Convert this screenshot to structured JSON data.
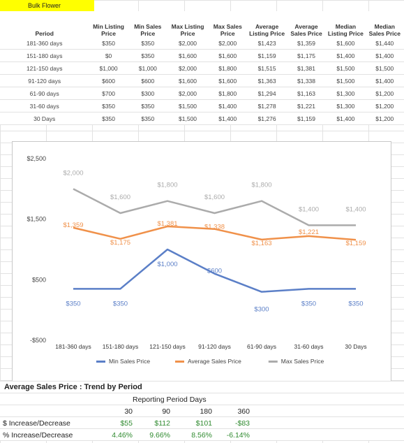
{
  "sheet_title": "Bulk Flower",
  "table": {
    "headers": [
      "Period",
      "Min Listing Price",
      "Min Sales Price",
      "Max Listing Price",
      "Max Sales Price",
      "Average Listing Price",
      "Average Sales Price",
      "Median Listing Price",
      "Median Sales Price"
    ],
    "rows": [
      [
        "181-360 days",
        "$350",
        "$350",
        "$2,000",
        "$2,000",
        "$1,423",
        "$1,359",
        "$1,600",
        "$1,440"
      ],
      [
        "151-180 days",
        "$0",
        "$350",
        "$1,600",
        "$1,600",
        "$1,159",
        "$1,175",
        "$1,400",
        "$1,400"
      ],
      [
        "121-150 days",
        "$1,000",
        "$1,000",
        "$2,000",
        "$1,800",
        "$1,515",
        "$1,381",
        "$1,500",
        "$1,500"
      ],
      [
        "91-120 days",
        "$600",
        "$600",
        "$1,600",
        "$1,600",
        "$1,363",
        "$1,338",
        "$1,500",
        "$1,400"
      ],
      [
        "61-90 days",
        "$700",
        "$300",
        "$2,000",
        "$1,800",
        "$1,294",
        "$1,163",
        "$1,300",
        "$1,200"
      ],
      [
        "31-60 days",
        "$350",
        "$350",
        "$1,500",
        "$1,400",
        "$1,278",
        "$1,221",
        "$1,300",
        "$1,200"
      ],
      [
        "30 Days",
        "$350",
        "$350",
        "$1,500",
        "$1,400",
        "$1,276",
        "$1,159",
        "$1,400",
        "$1,200"
      ]
    ]
  },
  "chart_data": {
    "type": "line",
    "categories": [
      "181-360 days",
      "151-180 days",
      "121-150 days",
      "91-120 days",
      "61-90 days",
      "31-60 days",
      "30 Days"
    ],
    "series": [
      {
        "name": "Min Sales Price",
        "color": "#5b7fc7",
        "values": [
          350,
          350,
          1000,
          600,
          300,
          350,
          350
        ],
        "labels": [
          "$350",
          "$350",
          "$1,000",
          "$600",
          "$300",
          "$350",
          "$350"
        ]
      },
      {
        "name": "Average Sales Price",
        "color": "#f0914a",
        "values": [
          1359,
          1175,
          1381,
          1338,
          1163,
          1221,
          1159
        ],
        "labels": [
          "$1,359",
          "$1,175",
          "$1,381",
          "$1,338",
          "$1,163",
          "$1,221",
          "$1,159"
        ]
      },
      {
        "name": "Max Sales Price",
        "color": "#ababab",
        "values": [
          2000,
          1600,
          1800,
          1600,
          1800,
          1400,
          1400
        ],
        "labels": [
          "$2,000",
          "$1,600",
          "$1,800",
          "$1,600",
          "$1,800",
          "$1,400",
          "$1,400"
        ]
      }
    ],
    "y_ticks": [
      "$2,500",
      "$1,500",
      "$500",
      "-$500"
    ],
    "y_tick_values": [
      2500,
      1500,
      500,
      -500
    ],
    "ylim": [
      -500,
      2500
    ],
    "title": "",
    "xlabel": "",
    "ylabel": "",
    "legend_position": "bottom",
    "grid": false
  },
  "trend": {
    "title": "Average Sales Price : Trend by Period",
    "subtitle": "Reporting Period Days",
    "periods": [
      "30",
      "90",
      "180",
      "360"
    ],
    "rows": [
      {
        "label": "$ Increase/Decrease",
        "values": [
          "$55",
          "$112",
          "$101",
          "-$83"
        ]
      },
      {
        "label": "% Increase/Decrease",
        "values": [
          "4.46%",
          "9.66%",
          "8.56%",
          "-6.14%"
        ]
      }
    ]
  }
}
